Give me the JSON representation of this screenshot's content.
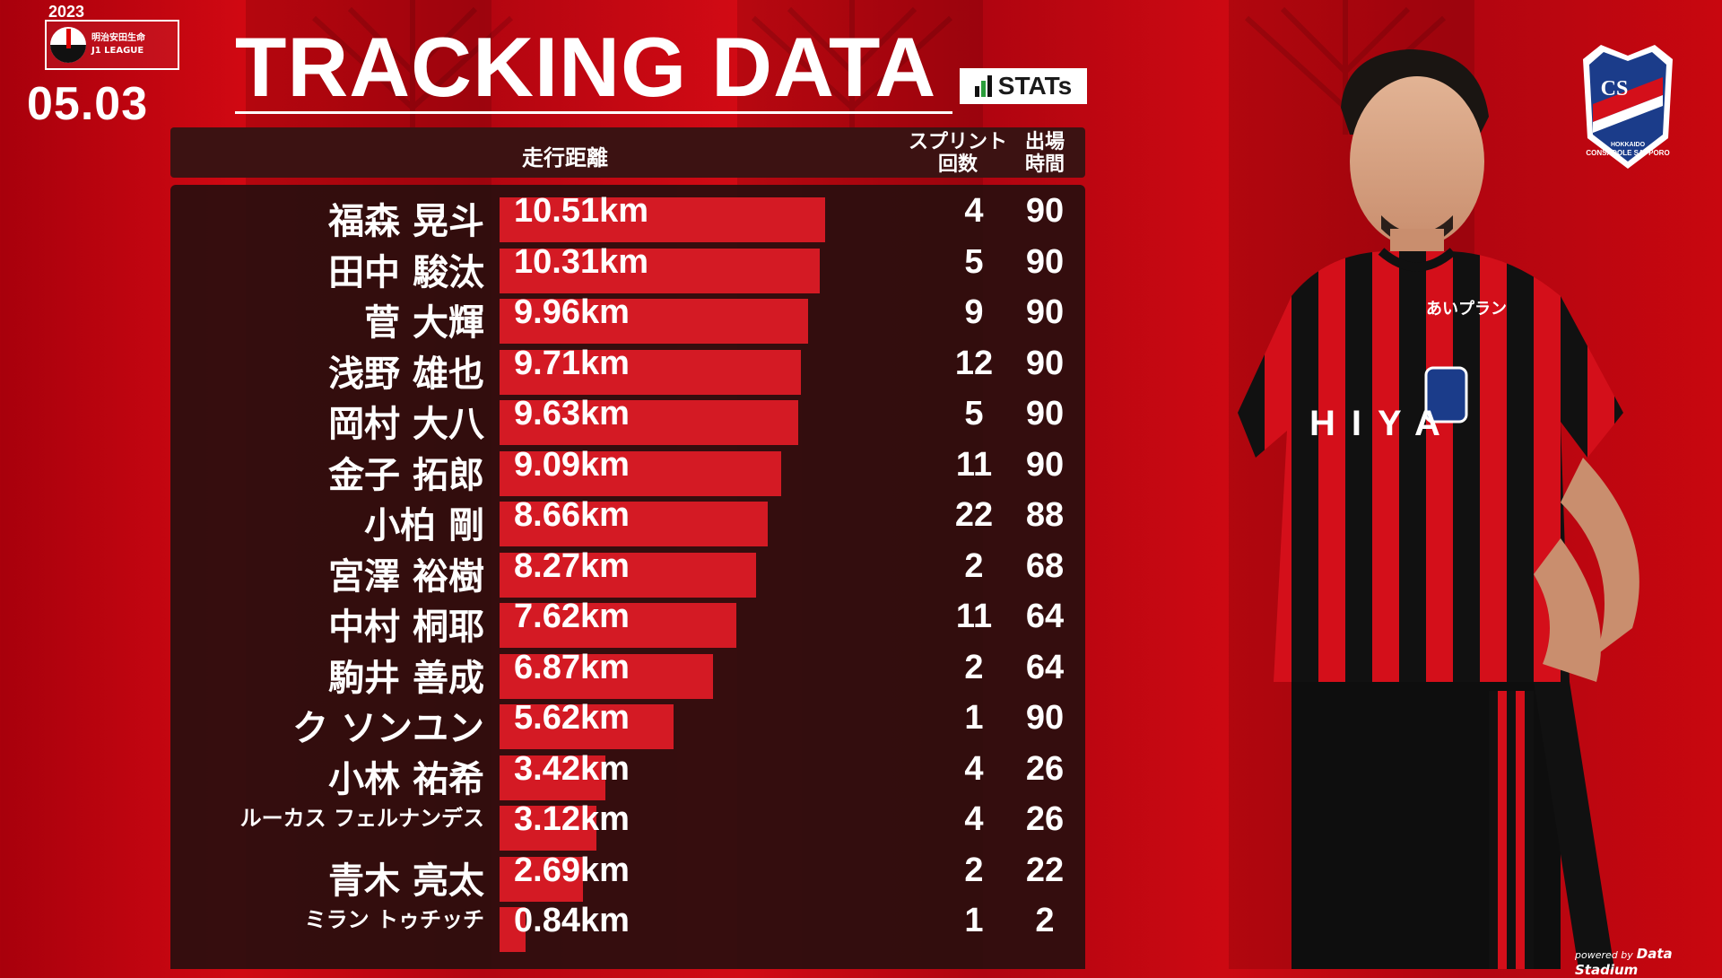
{
  "header": {
    "league_year": "2023",
    "league_name_1": "明治安田生命",
    "league_name_2": "J1 LEAGUE",
    "match_date": "05.03",
    "title": "TRACKING DATA",
    "stats_logo_text": "STATs"
  },
  "columns": {
    "distance": "走行距離",
    "sprint_1": "スプリント",
    "sprint_2": "回数",
    "minutes_1": "出場",
    "minutes_2": "時間"
  },
  "chart_data": {
    "type": "bar",
    "orientation": "horizontal",
    "x_unit": "km",
    "xlim": [
      0,
      12
    ],
    "rows": [
      {
        "name": "福森 晃斗",
        "distance": 10.51,
        "distance_label": "10.51km",
        "sprints": "4",
        "minutes": "90"
      },
      {
        "name": "田中 駿汰",
        "distance": 10.31,
        "distance_label": "10.31km",
        "sprints": "5",
        "minutes": "90"
      },
      {
        "name": "菅 大輝",
        "distance": 9.96,
        "distance_label": "9.96km",
        "sprints": "9",
        "minutes": "90"
      },
      {
        "name": "浅野 雄也",
        "distance": 9.71,
        "distance_label": "9.71km",
        "sprints": "12",
        "minutes": "90"
      },
      {
        "name": "岡村 大八",
        "distance": 9.63,
        "distance_label": "9.63km",
        "sprints": "5",
        "minutes": "90"
      },
      {
        "name": "金子 拓郎",
        "distance": 9.09,
        "distance_label": "9.09km",
        "sprints": "11",
        "minutes": "90"
      },
      {
        "name": "小柏 剛",
        "distance": 8.66,
        "distance_label": "8.66km",
        "sprints": "22",
        "minutes": "88"
      },
      {
        "name": "宮澤 裕樹",
        "distance": 8.27,
        "distance_label": "8.27km",
        "sprints": "2",
        "minutes": "68"
      },
      {
        "name": "中村 桐耶",
        "distance": 7.62,
        "distance_label": "7.62km",
        "sprints": "11",
        "minutes": "64"
      },
      {
        "name": "駒井 善成",
        "distance": 6.87,
        "distance_label": "6.87km",
        "sprints": "2",
        "minutes": "64"
      },
      {
        "name": "ク ソンユン",
        "distance": 5.62,
        "distance_label": "5.62km",
        "sprints": "1",
        "minutes": "90"
      },
      {
        "name": "小林 祐希",
        "distance": 3.42,
        "distance_label": "3.42km",
        "sprints": "4",
        "minutes": "26"
      },
      {
        "name": "ルーカス フェルナンデス",
        "distance": 3.12,
        "distance_label": "3.12km",
        "sprints": "4",
        "minutes": "26",
        "small": true
      },
      {
        "name": "青木 亮太",
        "distance": 2.69,
        "distance_label": "2.69km",
        "sprints": "2",
        "minutes": "22"
      },
      {
        "name": "ミラン トゥチッチ",
        "distance": 0.84,
        "distance_label": "0.84km",
        "sprints": "1",
        "minutes": "2",
        "small": true
      }
    ]
  },
  "colors": {
    "bar": "#d41a24",
    "panel": "#2a0e0e",
    "background": "#c00812"
  },
  "player_jersey_text": "HIYA",
  "sponsor_text": "あいプラン",
  "club_logo_text": "CONSADOLE SAPPORO",
  "club_logo_subtext": "HOKKAIDO",
  "club_logo_initials": "CS",
  "powered_by_prefix": "powered by",
  "powered_by_brand": "Data Stadium"
}
